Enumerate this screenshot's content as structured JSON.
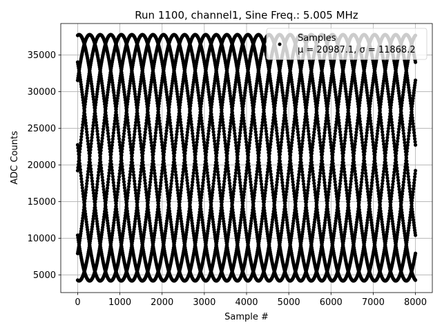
{
  "chart_data": {
    "type": "scatter",
    "title": "Run 1100, channel1, Sine Freq.: 5.005 MHz",
    "xlabel": "Sample #",
    "ylabel": "ADC Counts",
    "xlim": [
      -400,
      8400
    ],
    "ylim": [
      2600,
      39300
    ],
    "x_ticks": [
      0,
      1000,
      2000,
      3000,
      4000,
      5000,
      6000,
      7000,
      8000
    ],
    "y_ticks": [
      5000,
      10000,
      15000,
      20000,
      25000,
      30000,
      35000
    ],
    "grid": true,
    "legend_position": "top-right",
    "series": [
      {
        "name": "Samples",
        "stats_label": "μ = 20987.1, σ = 11868.2",
        "color": "#000000",
        "marker": "point",
        "x_range": [
          0,
          8000
        ],
        "point_step": 8,
        "signal": {
          "mean": 20987.1,
          "amplitude": 16784,
          "period_samples": 2000,
          "phases_deg": [
            0,
            45,
            90,
            135,
            180,
            225,
            270,
            315
          ],
          "start_phase_deg": 84
        }
      }
    ]
  }
}
